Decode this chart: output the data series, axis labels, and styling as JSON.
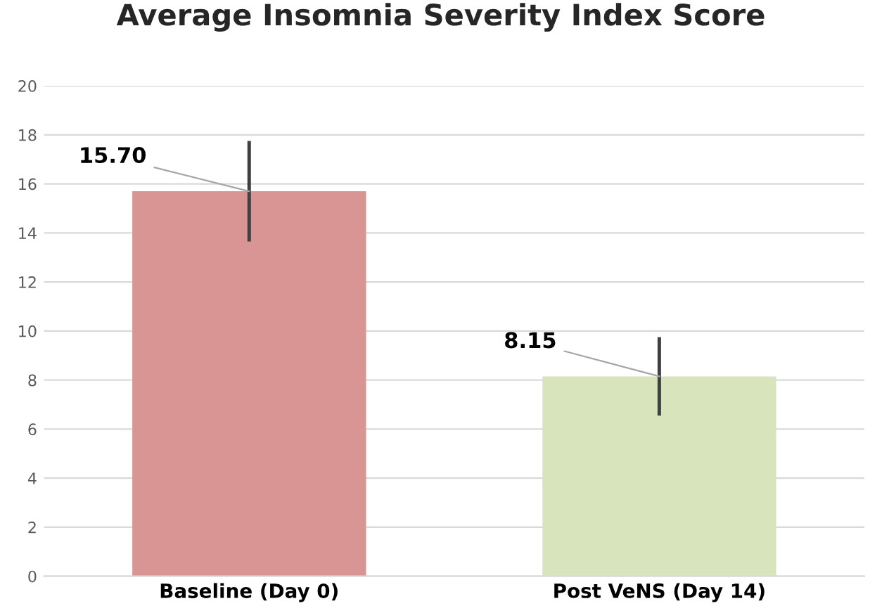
{
  "chart_data": {
    "type": "bar",
    "title": "Average Insomnia Severity Index Score",
    "categories": [
      "Baseline (Day 0)",
      "Post VeNS (Day 14)"
    ],
    "values": [
      15.7,
      8.15
    ],
    "colors": [
      "#d99594",
      "#d7e4bc"
    ],
    "errors": [
      2.05,
      1.6
    ],
    "value_labels": [
      "15.70",
      "8.15"
    ],
    "ylim": [
      0,
      20
    ],
    "yticks": [
      0,
      2,
      4,
      6,
      8,
      10,
      12,
      14,
      16,
      18,
      20
    ],
    "grid": "y"
  }
}
